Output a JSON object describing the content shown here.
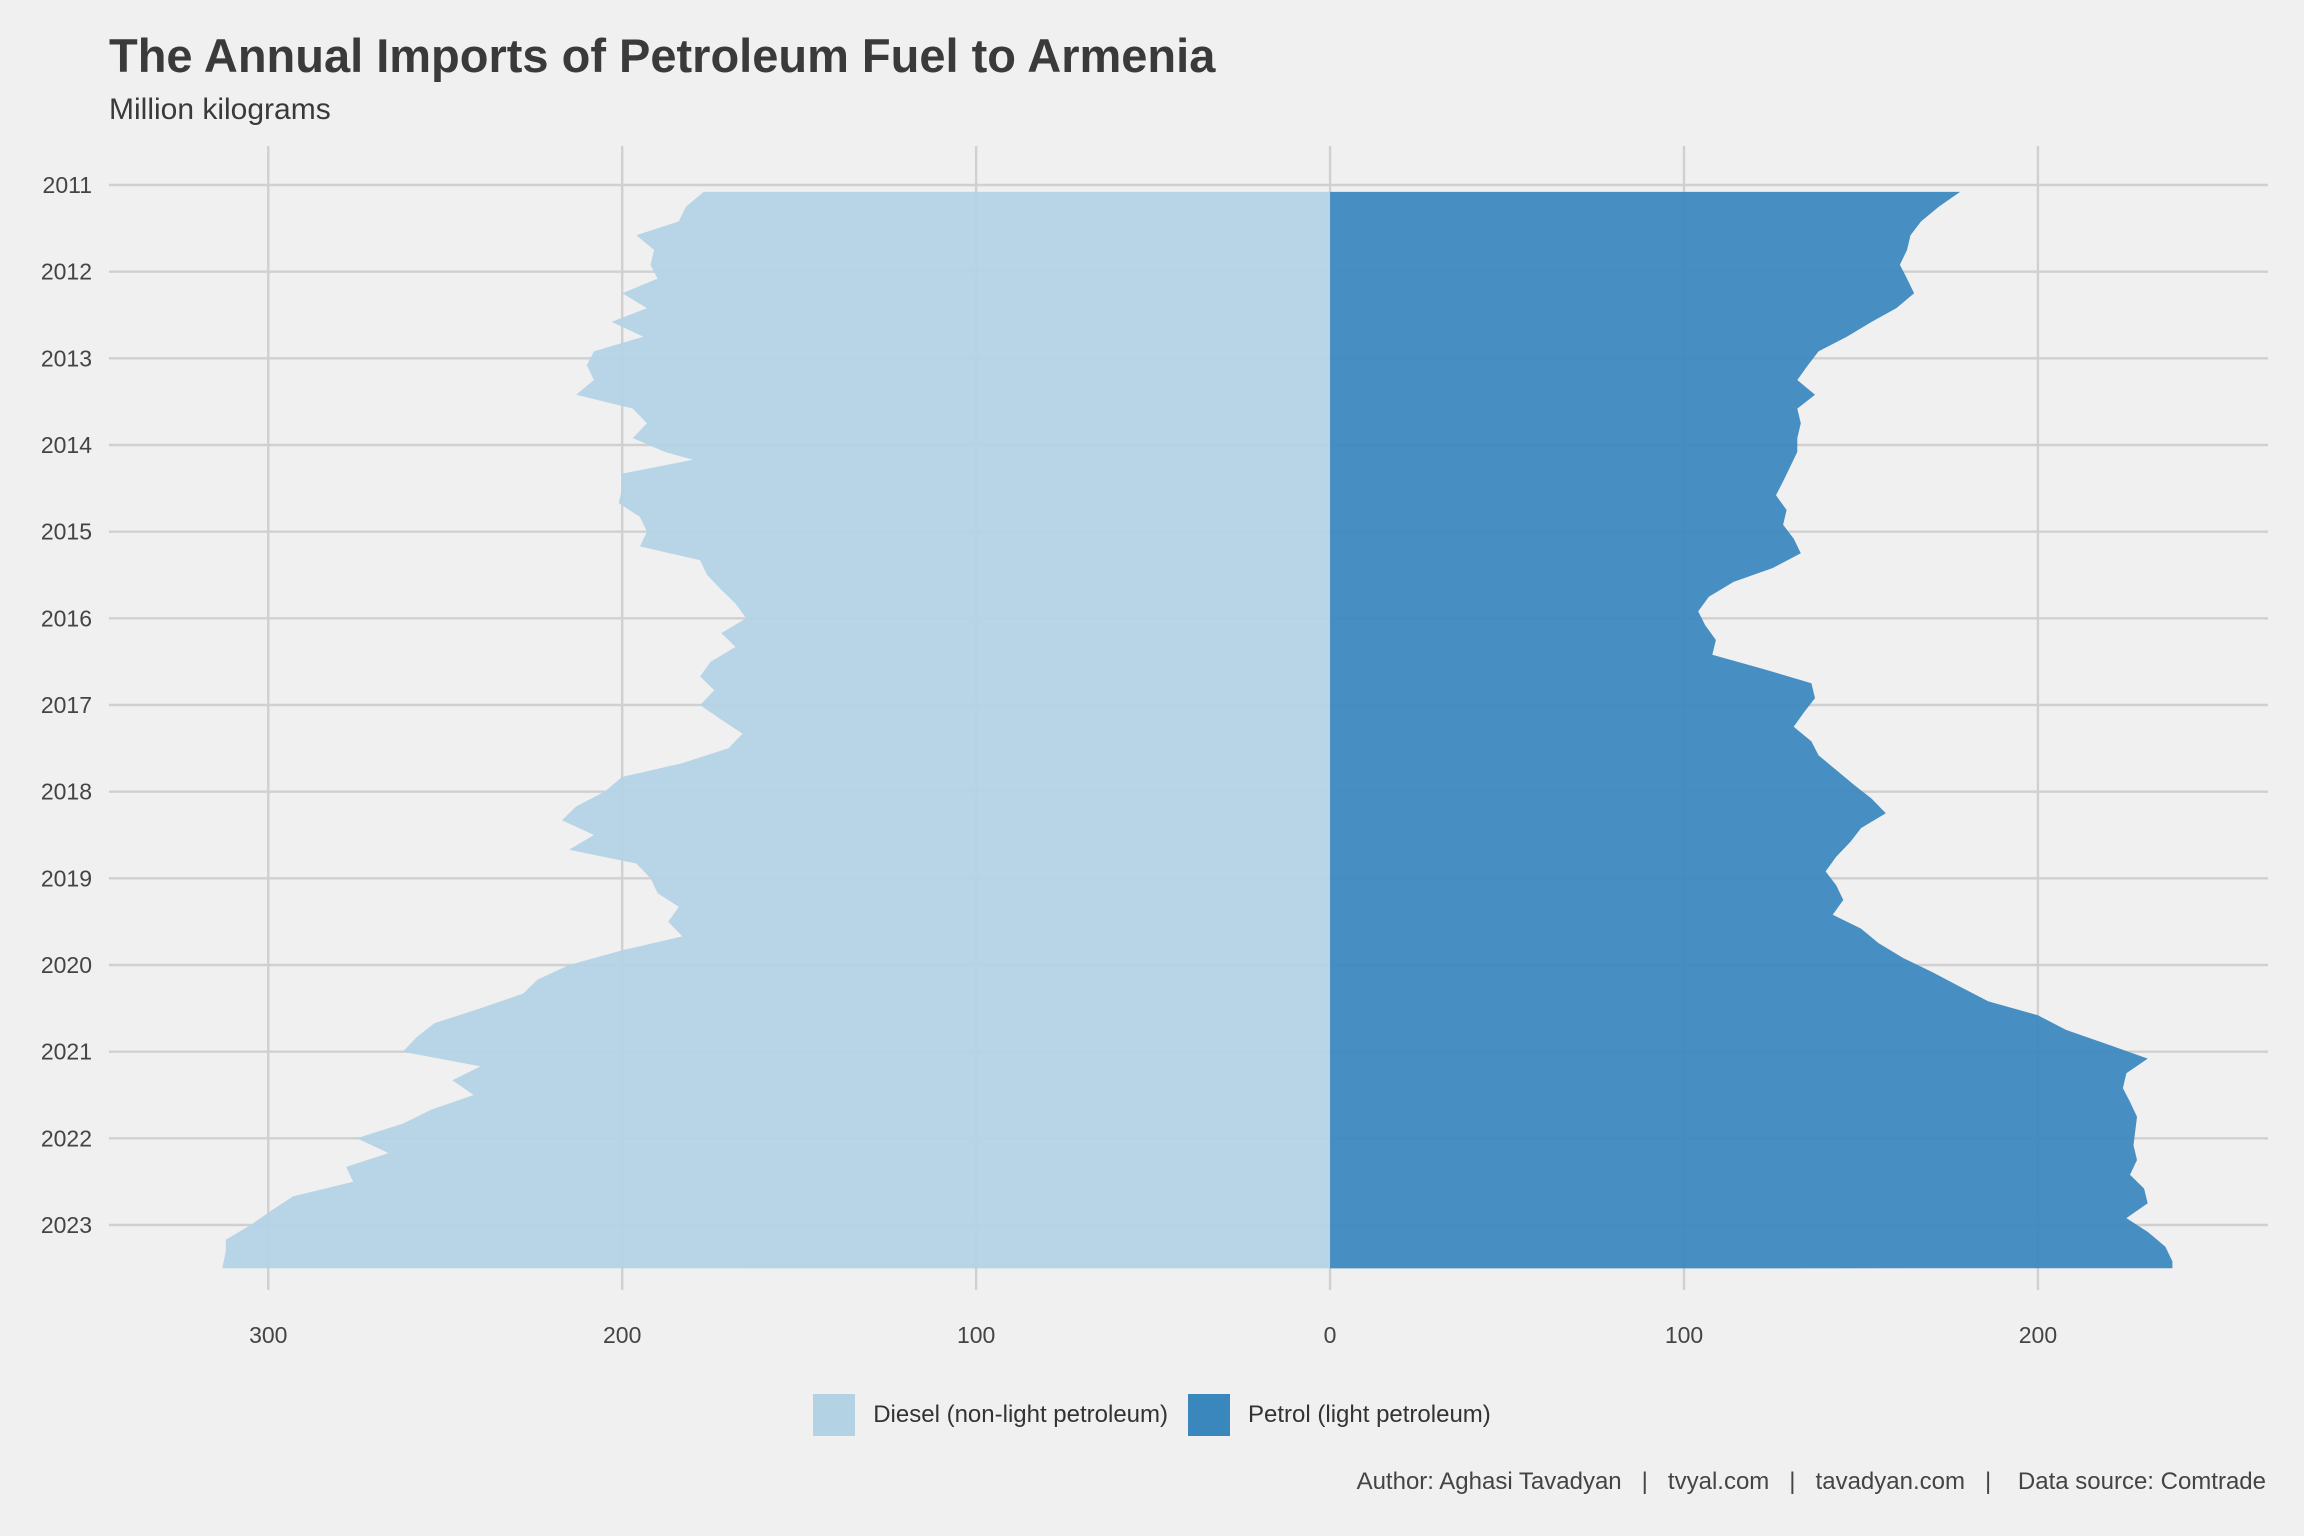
{
  "title": "The Annual Imports of Petroleum Fuel to Armenia",
  "subtitle": "Million kilograms",
  "caption": {
    "author": "Author: Aghasi Tavadyan",
    "site1": "tvyal.com",
    "site2": "tavadyan.com",
    "source": "Data source: Comtrade",
    "separator": "|"
  },
  "legend": [
    {
      "label": "Diesel (non-light petroleum)",
      "color": "#b3d3e5"
    },
    {
      "label": "Petrol (light petroleum)",
      "color": "#3a87be"
    }
  ],
  "chart_data": {
    "type": "area",
    "orientation": "mirrored-horizontal",
    "x_axis": {
      "ticks": [
        -300,
        -200,
        -100,
        0,
        100,
        200
      ],
      "tick_labels": [
        "300",
        "200",
        "100",
        "0",
        "100",
        "200"
      ],
      "range": [
        -345,
        265
      ]
    },
    "y_axis": {
      "ticks": [
        2011,
        2012,
        2013,
        2014,
        2015,
        2016,
        2017,
        2018,
        2019,
        2020,
        2021,
        2022,
        2023
      ],
      "range": [
        2010.55,
        2023.75
      ],
      "reversed": true
    },
    "grid": true,
    "legend_position": "bottom",
    "series": [
      {
        "name": "Diesel (non-light petroleum)",
        "color": "#b3d3e5",
        "side": "left",
        "points": [
          [
            2011.08,
            177
          ],
          [
            2011.25,
            182
          ],
          [
            2011.42,
            184
          ],
          [
            2011.58,
            196
          ],
          [
            2011.75,
            191
          ],
          [
            2011.92,
            192
          ],
          [
            2012.08,
            190
          ],
          [
            2012.25,
            200
          ],
          [
            2012.42,
            193
          ],
          [
            2012.58,
            203
          ],
          [
            2012.75,
            194
          ],
          [
            2012.92,
            208
          ],
          [
            2013.08,
            210
          ],
          [
            2013.25,
            208
          ],
          [
            2013.42,
            213
          ],
          [
            2013.58,
            197
          ],
          [
            2013.75,
            193
          ],
          [
            2013.92,
            197
          ],
          [
            2014.08,
            188
          ],
          [
            2014.17,
            180
          ],
          [
            2014.33,
            200
          ],
          [
            2014.5,
            200
          ],
          [
            2014.67,
            201
          ],
          [
            2014.83,
            195
          ],
          [
            2015.0,
            193
          ],
          [
            2015.17,
            195
          ],
          [
            2015.33,
            178
          ],
          [
            2015.5,
            176
          ],
          [
            2015.67,
            172
          ],
          [
            2015.83,
            168
          ],
          [
            2016.0,
            165
          ],
          [
            2016.17,
            172
          ],
          [
            2016.33,
            168
          ],
          [
            2016.5,
            175
          ],
          [
            2016.67,
            178
          ],
          [
            2016.83,
            174
          ],
          [
            2017.0,
            178
          ],
          [
            2017.17,
            172
          ],
          [
            2017.33,
            166
          ],
          [
            2017.5,
            170
          ],
          [
            2017.67,
            183
          ],
          [
            2017.83,
            200
          ],
          [
            2018.0,
            205
          ],
          [
            2018.17,
            213
          ],
          [
            2018.33,
            217
          ],
          [
            2018.5,
            208
          ],
          [
            2018.67,
            215
          ],
          [
            2018.83,
            196
          ],
          [
            2019.0,
            192
          ],
          [
            2019.17,
            190
          ],
          [
            2019.33,
            184
          ],
          [
            2019.5,
            187
          ],
          [
            2019.67,
            183
          ],
          [
            2019.83,
            200
          ],
          [
            2020.0,
            215
          ],
          [
            2020.17,
            224
          ],
          [
            2020.33,
            228
          ],
          [
            2020.5,
            240
          ],
          [
            2020.67,
            253
          ],
          [
            2020.83,
            258
          ],
          [
            2021.0,
            262
          ],
          [
            2021.17,
            240
          ],
          [
            2021.33,
            248
          ],
          [
            2021.5,
            242
          ],
          [
            2021.67,
            254
          ],
          [
            2021.83,
            262
          ],
          [
            2022.0,
            275
          ],
          [
            2022.17,
            266
          ],
          [
            2022.33,
            278
          ],
          [
            2022.5,
            276
          ],
          [
            2022.67,
            293
          ],
          [
            2022.83,
            299
          ],
          [
            2023.0,
            305
          ],
          [
            2023.17,
            312
          ],
          [
            2023.3,
            312
          ],
          [
            2023.5,
            313
          ]
        ]
      },
      {
        "name": "Petrol (light petroleum)",
        "color": "#3a87be",
        "side": "right",
        "points": [
          [
            2011.08,
            178
          ],
          [
            2011.25,
            172
          ],
          [
            2011.42,
            167
          ],
          [
            2011.58,
            164
          ],
          [
            2011.75,
            163
          ],
          [
            2011.92,
            161
          ],
          [
            2012.08,
            163
          ],
          [
            2012.25,
            165
          ],
          [
            2012.42,
            160
          ],
          [
            2012.58,
            153
          ],
          [
            2012.75,
            146
          ],
          [
            2012.92,
            138
          ],
          [
            2013.08,
            135
          ],
          [
            2013.25,
            132
          ],
          [
            2013.42,
            137
          ],
          [
            2013.58,
            132
          ],
          [
            2013.75,
            133
          ],
          [
            2013.92,
            132
          ],
          [
            2014.08,
            132
          ],
          [
            2014.25,
            130
          ],
          [
            2014.42,
            128
          ],
          [
            2014.58,
            126
          ],
          [
            2014.75,
            129
          ],
          [
            2014.92,
            128
          ],
          [
            2015.08,
            131
          ],
          [
            2015.25,
            133
          ],
          [
            2015.42,
            125
          ],
          [
            2015.58,
            114
          ],
          [
            2015.75,
            107
          ],
          [
            2015.92,
            104
          ],
          [
            2016.08,
            106
          ],
          [
            2016.25,
            109
          ],
          [
            2016.42,
            108
          ],
          [
            2016.58,
            122
          ],
          [
            2016.75,
            136
          ],
          [
            2016.92,
            137
          ],
          [
            2017.08,
            134
          ],
          [
            2017.25,
            131
          ],
          [
            2017.42,
            136
          ],
          [
            2017.58,
            138
          ],
          [
            2017.75,
            143
          ],
          [
            2017.92,
            148
          ],
          [
            2018.08,
            153
          ],
          [
            2018.25,
            157
          ],
          [
            2018.42,
            150
          ],
          [
            2018.58,
            147
          ],
          [
            2018.75,
            143
          ],
          [
            2018.92,
            140
          ],
          [
            2019.08,
            143
          ],
          [
            2019.25,
            145
          ],
          [
            2019.42,
            142
          ],
          [
            2019.58,
            150
          ],
          [
            2019.75,
            155
          ],
          [
            2019.92,
            162
          ],
          [
            2020.08,
            170
          ],
          [
            2020.25,
            178
          ],
          [
            2020.42,
            186
          ],
          [
            2020.58,
            200
          ],
          [
            2020.75,
            208
          ],
          [
            2020.92,
            220
          ],
          [
            2021.08,
            231
          ],
          [
            2021.25,
            225
          ],
          [
            2021.42,
            224
          ],
          [
            2021.58,
            226
          ],
          [
            2021.75,
            228
          ],
          [
            2022.08,
            227
          ],
          [
            2022.25,
            228
          ],
          [
            2022.42,
            226
          ],
          [
            2022.58,
            230
          ],
          [
            2022.75,
            231
          ],
          [
            2022.92,
            225
          ],
          [
            2023.08,
            231
          ],
          [
            2023.25,
            236
          ],
          [
            2023.42,
            238
          ],
          [
            2023.5,
            238
          ]
        ]
      }
    ]
  }
}
